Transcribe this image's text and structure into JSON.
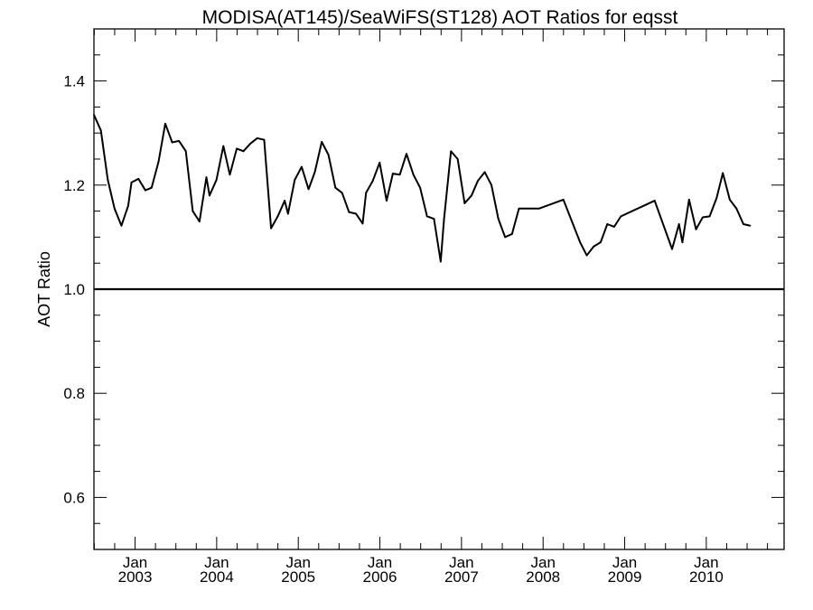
{
  "chart_data": {
    "type": "line",
    "title": "MODISA(AT145)/SeaWiFS(ST128)  AOT Ratios for eqsst",
    "xlabel": "",
    "ylabel": "AOT Ratio",
    "xlim": [
      "2002-07-01",
      "2010-12-15"
    ],
    "ylim": [
      0.5,
      1.5
    ],
    "yticks": [
      {
        "value": 0.6,
        "label": "0.6"
      },
      {
        "value": 0.8,
        "label": "0.8"
      },
      {
        "value": 1.0,
        "label": "1.0"
      },
      {
        "value": 1.2,
        "label": "1.2"
      },
      {
        "value": 1.4,
        "label": "1.4"
      }
    ],
    "xticks": [
      {
        "date": "2003-01-01",
        "month": "Jan",
        "year": "2003"
      },
      {
        "date": "2004-01-01",
        "month": "Jan",
        "year": "2004"
      },
      {
        "date": "2005-01-01",
        "month": "Jan",
        "year": "2005"
      },
      {
        "date": "2006-01-01",
        "month": "Jan",
        "year": "2006"
      },
      {
        "date": "2007-01-01",
        "month": "Jan",
        "year": "2007"
      },
      {
        "date": "2008-01-01",
        "month": "Jan",
        "year": "2008"
      },
      {
        "date": "2009-01-01",
        "month": "Jan",
        "year": "2009"
      },
      {
        "date": "2010-01-01",
        "month": "Jan",
        "year": "2010"
      }
    ],
    "reference_line": 1.0,
    "grid": false,
    "series": [
      {
        "points": [
          [
            "2002-07-01",
            1.335
          ],
          [
            "2002-08-01",
            1.305
          ],
          [
            "2002-09-01",
            1.21
          ],
          [
            "2002-10-01",
            1.155
          ],
          [
            "2002-11-01",
            1.122
          ],
          [
            "2002-12-01",
            1.16
          ],
          [
            "2002-12-16",
            1.205
          ],
          [
            "2003-01-16",
            1.212
          ],
          [
            "2003-02-16",
            1.19
          ],
          [
            "2003-03-16",
            1.195
          ],
          [
            "2003-04-16",
            1.245
          ],
          [
            "2003-05-16",
            1.318
          ],
          [
            "2003-06-16",
            1.282
          ],
          [
            "2003-07-16",
            1.285
          ],
          [
            "2003-08-16",
            1.265
          ],
          [
            "2003-09-16",
            1.15
          ],
          [
            "2003-10-16",
            1.13
          ],
          [
            "2003-11-16",
            1.215
          ],
          [
            "2003-11-30",
            1.18
          ],
          [
            "2003-12-31",
            1.21
          ],
          [
            "2004-01-31",
            1.275
          ],
          [
            "2004-02-29",
            1.22
          ],
          [
            "2004-03-31",
            1.27
          ],
          [
            "2004-04-30",
            1.265
          ],
          [
            "2004-06-01",
            1.28
          ],
          [
            "2004-07-01",
            1.29
          ],
          [
            "2004-08-01",
            1.287
          ],
          [
            "2004-09-01",
            1.117
          ],
          [
            "2004-10-01",
            1.14
          ],
          [
            "2004-11-01",
            1.17
          ],
          [
            "2004-11-16",
            1.145
          ],
          [
            "2004-12-16",
            1.21
          ],
          [
            "2005-01-16",
            1.235
          ],
          [
            "2005-02-16",
            1.192
          ],
          [
            "2005-03-16",
            1.225
          ],
          [
            "2005-04-16",
            1.283
          ],
          [
            "2005-05-16",
            1.258
          ],
          [
            "2005-06-16",
            1.195
          ],
          [
            "2005-07-16",
            1.185
          ],
          [
            "2005-08-16",
            1.148
          ],
          [
            "2005-09-16",
            1.145
          ],
          [
            "2005-10-16",
            1.126
          ],
          [
            "2005-10-31",
            1.185
          ],
          [
            "2005-11-30",
            1.208
          ],
          [
            "2005-12-31",
            1.243
          ],
          [
            "2006-01-31",
            1.17
          ],
          [
            "2006-02-28",
            1.222
          ],
          [
            "2006-03-31",
            1.22
          ],
          [
            "2006-04-30",
            1.26
          ],
          [
            "2006-05-31",
            1.22
          ],
          [
            "2006-06-30",
            1.195
          ],
          [
            "2006-07-31",
            1.14
          ],
          [
            "2006-08-31",
            1.135
          ],
          [
            "2006-09-30",
            1.053
          ],
          [
            "2006-10-15",
            1.135
          ],
          [
            "2006-11-15",
            1.265
          ],
          [
            "2006-12-15",
            1.25
          ],
          [
            "2007-01-15",
            1.165
          ],
          [
            "2007-02-15",
            1.18
          ],
          [
            "2007-03-15",
            1.208
          ],
          [
            "2007-04-15",
            1.225
          ],
          [
            "2007-05-15",
            1.2
          ],
          [
            "2007-06-15",
            1.135
          ],
          [
            "2007-07-15",
            1.1
          ],
          [
            "2007-08-15",
            1.106
          ],
          [
            "2007-09-15",
            1.155
          ],
          [
            "2007-12-15",
            1.155
          ],
          [
            "2008-04-01",
            1.172
          ],
          [
            "2008-06-15",
            1.09
          ],
          [
            "2008-07-15",
            1.065
          ],
          [
            "2008-08-15",
            1.082
          ],
          [
            "2008-09-15",
            1.09
          ],
          [
            "2008-10-15",
            1.125
          ],
          [
            "2008-11-15",
            1.12
          ],
          [
            "2008-12-15",
            1.14
          ],
          [
            "2009-05-15",
            1.17
          ],
          [
            "2009-08-01",
            1.077
          ],
          [
            "2009-09-01",
            1.125
          ],
          [
            "2009-09-16",
            1.09
          ],
          [
            "2009-10-16",
            1.172
          ],
          [
            "2009-11-16",
            1.115
          ],
          [
            "2009-12-16",
            1.138
          ],
          [
            "2010-01-16",
            1.14
          ],
          [
            "2010-02-16",
            1.175
          ],
          [
            "2010-03-16",
            1.223
          ],
          [
            "2010-04-16",
            1.172
          ],
          [
            "2010-05-16",
            1.155
          ],
          [
            "2010-06-16",
            1.125
          ],
          [
            "2010-07-16",
            1.122
          ]
        ]
      }
    ]
  }
}
